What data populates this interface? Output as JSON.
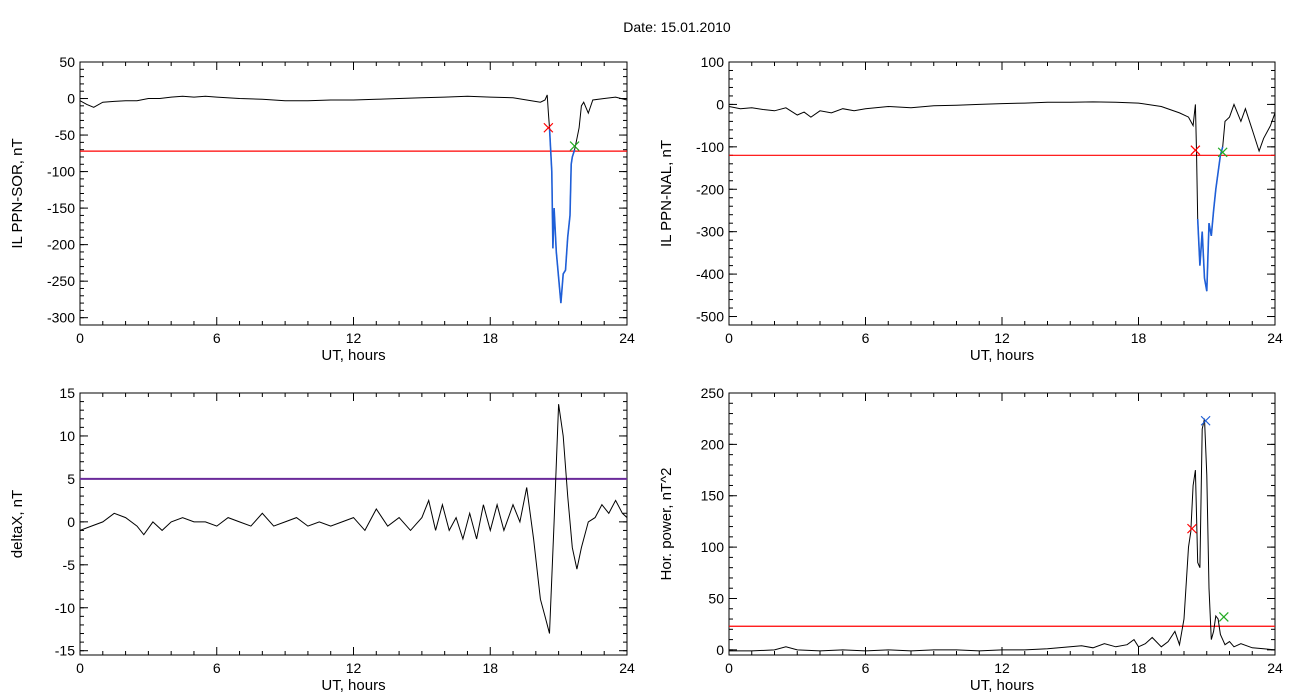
{
  "page_title": "Date:  15.01.2010",
  "colors": {
    "trace": "#000000",
    "threshold": "#ff0000",
    "fill_segment": "#1f5fd8",
    "marker_red": "#ff0000",
    "marker_green": "#22aa22",
    "marker_blue": "#1f5fd8",
    "threshold_purple": "#6a2a9a"
  },
  "chart_data": [
    {
      "type": "line",
      "ylabel": "IL PPN-SOR, nT",
      "xlabel": "UT, hours",
      "xlim": [
        0,
        24
      ],
      "ylim": [
        -310,
        50
      ],
      "xticks": [
        0,
        6,
        12,
        18,
        24
      ],
      "yticks": [
        50,
        0,
        -50,
        -100,
        -150,
        -200,
        -250,
        -300
      ],
      "grid": false,
      "threshold": -72,
      "threshold_color": "#ff0000",
      "highlight_range": [
        20.6,
        21.7
      ],
      "series": [
        {
          "x": [
            0,
            0.3,
            0.6,
            1.0,
            1.5,
            2.0,
            2.5,
            3.0,
            3.5,
            4.0,
            4.5,
            5.0,
            5.5,
            6.0,
            7.0,
            8.0,
            9.0,
            10.0,
            11.0,
            12.0,
            13.0,
            14.0,
            15.0,
            16.0,
            17.0,
            18.0,
            19.0,
            19.8,
            20.2,
            20.4,
            20.5,
            20.55,
            20.6,
            20.7,
            20.75,
            20.8,
            20.9,
            21.0,
            21.1,
            21.2,
            21.3,
            21.4,
            21.5,
            21.55,
            21.6,
            21.7,
            21.8,
            21.9,
            22.0,
            22.1,
            22.3,
            22.5,
            23.0,
            23.5,
            24.0
          ],
          "y": [
            -3,
            -8,
            -12,
            -5,
            -4,
            -3,
            -3,
            0,
            0,
            2,
            3,
            2,
            3,
            2,
            0,
            -1,
            -3,
            -3,
            -2,
            -2,
            -1,
            0,
            1,
            2,
            3,
            2,
            1,
            -3,
            -5,
            -2,
            5,
            -20,
            -40,
            -100,
            -205,
            -150,
            -210,
            -245,
            -280,
            -240,
            -235,
            -190,
            -160,
            -90,
            -80,
            -70,
            -55,
            -40,
            -10,
            -5,
            -20,
            -2,
            0,
            2,
            -2
          ]
        }
      ],
      "markers": [
        {
          "x": 20.55,
          "y": -40,
          "color": "#ff0000"
        },
        {
          "x": 21.7,
          "y": -65,
          "color": "#22aa22"
        }
      ]
    },
    {
      "type": "line",
      "ylabel": "IL PPN-NAL, nT",
      "xlabel": "UT, hours",
      "xlim": [
        0,
        24
      ],
      "ylim": [
        -520,
        100
      ],
      "xticks": [
        0,
        6,
        12,
        18,
        24
      ],
      "yticks": [
        100,
        0,
        -100,
        -200,
        -300,
        -400,
        -500
      ],
      "grid": false,
      "threshold": -120,
      "threshold_color": "#ff0000",
      "highlight_range": [
        20.6,
        21.7
      ],
      "series": [
        {
          "x": [
            0,
            0.5,
            1.0,
            1.5,
            2.0,
            2.5,
            3.0,
            3.3,
            3.6,
            4.0,
            4.5,
            5.0,
            5.5,
            6.0,
            7.0,
            8.0,
            9.0,
            10.0,
            11.0,
            12.0,
            13.0,
            14.0,
            15.0,
            16.0,
            17.0,
            18.0,
            19.0,
            19.8,
            20.2,
            20.4,
            20.5,
            20.55,
            20.6,
            20.7,
            20.8,
            20.9,
            21.0,
            21.1,
            21.2,
            21.3,
            21.4,
            21.5,
            21.6,
            21.7,
            21.8,
            22.0,
            22.2,
            22.5,
            22.7,
            23.0,
            23.3,
            23.5,
            23.8,
            24.0
          ],
          "y": [
            -5,
            -10,
            -8,
            -12,
            -15,
            -8,
            -25,
            -18,
            -30,
            -15,
            -20,
            -10,
            -15,
            -10,
            -5,
            -8,
            -3,
            -2,
            0,
            2,
            3,
            5,
            5,
            6,
            5,
            3,
            -5,
            -20,
            -30,
            -50,
            0,
            -110,
            -270,
            -380,
            -300,
            -410,
            -440,
            -280,
            -310,
            -250,
            -200,
            -160,
            -120,
            -100,
            -40,
            -30,
            0,
            -40,
            -10,
            -60,
            -110,
            -80,
            -50,
            -20
          ]
        }
      ],
      "markers": [
        {
          "x": 20.5,
          "y": -108,
          "color": "#ff0000"
        },
        {
          "x": 21.7,
          "y": -113,
          "color": "#22aa22"
        }
      ]
    },
    {
      "type": "line",
      "ylabel": "deltaX, nT",
      "xlabel": "UT, hours",
      "xlim": [
        0,
        24
      ],
      "ylim": [
        -15.5,
        15
      ],
      "xticks": [
        0,
        6,
        12,
        18,
        24
      ],
      "yticks": [
        15,
        10,
        5,
        0,
        -5,
        -10,
        -15
      ],
      "grid": false,
      "threshold": 5,
      "threshold_color": "#6a2a9a",
      "highlight_range": null,
      "series": [
        {
          "x": [
            0,
            0.5,
            1.0,
            1.5,
            2.0,
            2.5,
            2.8,
            3.2,
            3.6,
            4.0,
            4.5,
            5.0,
            5.5,
            6.0,
            6.5,
            7.0,
            7.5,
            8.0,
            8.5,
            9.0,
            9.5,
            10.0,
            10.5,
            11.0,
            11.5,
            12.0,
            12.5,
            13.0,
            13.5,
            14.0,
            14.5,
            15.0,
            15.3,
            15.6,
            15.9,
            16.2,
            16.5,
            16.8,
            17.1,
            17.4,
            17.7,
            18.0,
            18.3,
            18.6,
            19.0,
            19.3,
            19.6,
            19.9,
            20.2,
            20.4,
            20.6,
            20.8,
            21.0,
            21.2,
            21.4,
            21.6,
            21.8,
            22.0,
            22.3,
            22.6,
            22.9,
            23.2,
            23.5,
            23.8,
            24.0
          ],
          "y": [
            -1,
            -0.5,
            0,
            1,
            0.5,
            -0.5,
            -1.5,
            0,
            -1,
            0,
            0.5,
            0,
            0,
            -0.5,
            0.5,
            0,
            -0.5,
            1,
            -0.5,
            0,
            0.5,
            -0.5,
            0,
            -0.5,
            0,
            0.5,
            -1,
            1.5,
            -0.5,
            0.5,
            -1,
            0.5,
            2.5,
            -1,
            2,
            -1,
            0.5,
            -2,
            1,
            -2,
            2,
            -1,
            2,
            -1,
            2,
            0,
            4,
            -2,
            -9,
            -11,
            -13,
            0,
            13.7,
            10,
            3,
            -3,
            -5.5,
            -3,
            0,
            0.5,
            2,
            1,
            2.5,
            1,
            0.5
          ]
        }
      ],
      "markers": []
    },
    {
      "type": "line",
      "ylabel": "Hor. power, nT^2",
      "xlabel": "UT, hours",
      "xlim": [
        0,
        24
      ],
      "ylim": [
        -5,
        250
      ],
      "xticks": [
        0,
        6,
        12,
        18,
        24
      ],
      "yticks": [
        250,
        200,
        150,
        100,
        50,
        0
      ],
      "grid": false,
      "threshold": 23,
      "threshold_color": "#ff0000",
      "highlight_range": null,
      "series": [
        {
          "x": [
            0,
            1.0,
            2.0,
            2.5,
            3.0,
            4.0,
            5.0,
            6.0,
            7.0,
            8.0,
            9.0,
            10.0,
            11.0,
            12.0,
            13.0,
            14.0,
            15.0,
            15.5,
            16.0,
            16.5,
            17.0,
            17.5,
            17.8,
            18.0,
            18.3,
            18.6,
            19.0,
            19.3,
            19.6,
            19.8,
            20.0,
            20.2,
            20.3,
            20.4,
            20.5,
            20.6,
            20.7,
            20.8,
            20.9,
            21.0,
            21.1,
            21.2,
            21.3,
            21.4,
            21.5,
            21.6,
            21.7,
            21.8,
            22.0,
            22.2,
            22.5,
            23.0,
            23.5,
            24.0
          ],
          "y": [
            -1,
            -1,
            0,
            3,
            0,
            -1,
            0,
            -1,
            0,
            -1,
            0,
            0,
            -1,
            0,
            0,
            1,
            3,
            4,
            2,
            6,
            3,
            5,
            10,
            3,
            6,
            12,
            3,
            8,
            18,
            5,
            30,
            100,
            115,
            160,
            175,
            85,
            80,
            215,
            225,
            170,
            60,
            10,
            18,
            33,
            30,
            15,
            10,
            5,
            8,
            3,
            6,
            2,
            1,
            0
          ]
        }
      ],
      "markers": [
        {
          "x": 20.35,
          "y": 118,
          "color": "#ff0000"
        },
        {
          "x": 20.95,
          "y": 223,
          "color": "#1f5fd8"
        },
        {
          "x": 21.75,
          "y": 32,
          "color": "#22aa22"
        }
      ]
    }
  ]
}
